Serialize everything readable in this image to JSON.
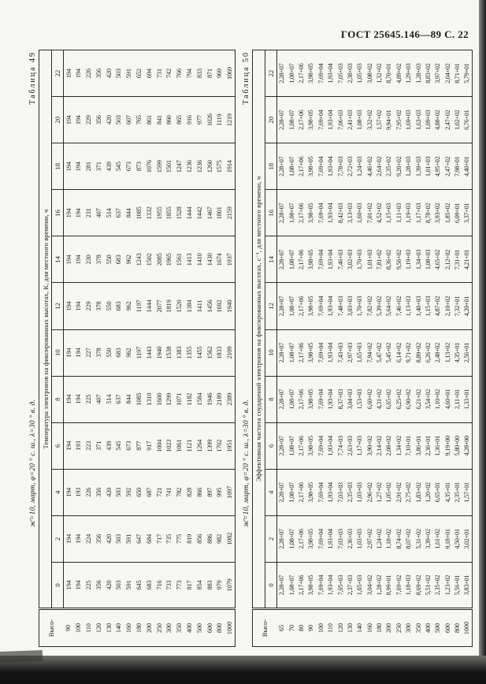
{
  "page": {
    "header": "ГОСТ 25645.146—89  С.  22"
  },
  "tables": [
    {
      "label": "Таблица 49",
      "subtitle": "ж̄=10, март, φ=20 ° с. ш., λ=30 ° в. д.",
      "title": "Температура электронов на фиксированных высотах, К, для местного времени, ч",
      "height_header_line1": "Высо-",
      "height_header_line2": "та, км",
      "hours": [
        "0",
        "2",
        "4",
        "6",
        "8",
        "10",
        "12",
        "14",
        "16",
        "18",
        "20",
        "22"
      ],
      "heights": [
        "90",
        "100",
        "110",
        "120",
        "130",
        "140",
        "160",
        "180",
        "200",
        "250",
        "300",
        "350",
        "400",
        "500",
        "600",
        "800",
        "1000"
      ],
      "values_by_hour": [
        [
          "194",
          "194",
          "225",
          "356",
          "420",
          "503",
          "591",
          "645",
          "683",
          "716",
          "733",
          "773",
          "817",
          "854",
          "883",
          "979",
          "1079"
        ],
        [
          "194",
          "194",
          "224",
          "356",
          "420",
          "503",
          "591",
          "647",
          "684",
          "717",
          "735",
          "775",
          "819",
          "856",
          "886",
          "982",
          "1082"
        ],
        [
          "194",
          "193",
          "226",
          "356",
          "420",
          "503",
          "592",
          "650",
          "687",
          "721",
          "741",
          "782",
          "828",
          "866",
          "897",
          "995",
          "1097"
        ],
        [
          "194",
          "193",
          "223",
          "371",
          "439",
          "545",
          "673",
          "877",
          "917",
          "1004",
          "1023",
          "1061",
          "1121",
          "1264",
          "1399",
          "1702",
          "1951"
        ],
        [
          "194",
          "194",
          "225",
          "407",
          "514",
          "637",
          "844",
          "1085",
          "1310",
          "1600",
          "1299",
          "1071",
          "1182",
          "1584",
          "1946",
          "2189",
          "2389"
        ],
        [
          "194",
          "194",
          "227",
          "378",
          "550",
          "683",
          "962",
          "1197",
          "1443",
          "1940",
          "1538",
          "1383",
          "1355",
          "1455",
          "1562",
          "1833",
          "2109"
        ],
        [
          "194",
          "194",
          "229",
          "378",
          "550",
          "683",
          "962",
          "1197",
          "1444",
          "2077",
          "1819",
          "1520",
          "1384",
          "1411",
          "1456",
          "1692",
          "1940"
        ],
        [
          "194",
          "194",
          "230",
          "378",
          "550",
          "683",
          "962",
          "1243",
          "1502",
          "2085",
          "1965",
          "1561",
          "1413",
          "1410",
          "1430",
          "1674",
          "1937"
        ],
        [
          "194",
          "194",
          "231",
          "407",
          "514",
          "637",
          "844",
          "1085",
          "1332",
          "1955",
          "1855",
          "1528",
          "1444",
          "1442",
          "1467",
          "1801",
          "2159"
        ],
        [
          "194",
          "194",
          "281",
          "371",
          "439",
          "545",
          "673",
          "873",
          "1076",
          "1599",
          "1501",
          "1247",
          "1236",
          "1236",
          "1260",
          "1575",
          "1914"
        ],
        [
          "194",
          "194",
          "229",
          "356",
          "420",
          "503",
          "607",
          "765",
          "861",
          "841",
          "860",
          "865",
          "916",
          "977",
          "1026",
          "1119",
          "1219"
        ],
        [
          "194",
          "194",
          "226",
          "356",
          "420",
          "503",
          "591",
          "652",
          "694",
          "731",
          "742",
          "766",
          "794",
          "833",
          "871",
          "969",
          "1069"
        ]
      ]
    },
    {
      "label": "Таблица 50",
      "subtitle": "ж̄=10, март, φ=20 ° с. ш., λ=30 ° в. д.",
      "title": "Эффективная частота соударений электронов на фиксированных высотах, с⁻¹, для местного времени, ч",
      "height_header_line1": "Высо-",
      "height_header_line2": "та, км",
      "hours": [
        "0",
        "2",
        "4",
        "6",
        "8",
        "10",
        "12",
        "14",
        "16",
        "18",
        "20",
        "22"
      ],
      "heights": [
        "65",
        "70",
        "80",
        "90",
        "100",
        "110",
        "120",
        "130",
        "140",
        "160",
        "180",
        "200",
        "250",
        "300",
        "350",
        "400",
        "500",
        "600",
        "800",
        "1000"
      ],
      "values_by_hour": [
        [
          "2,28+07",
          "1,08+07",
          "2,17+06",
          "3,98+05",
          "7,69+04",
          "1,93+04",
          "7,05+03",
          "2,37+03",
          "1,05+03",
          "3,04+02",
          "1,28+02",
          "8,99+01",
          "7,69+02",
          "1,18+03",
          "8,69+02",
          "5,51+02",
          "2,35+02",
          "1,23+02",
          "5,56+01",
          "3,83+01"
        ],
        [
          "2,28+07",
          "1,08+07",
          "2,17+06",
          "3,98+05",
          "7,69+04",
          "1,93+04",
          "7,03+03",
          "2,36+03",
          "1,03+03",
          "2,97+02",
          "1,24+02",
          "1,18+02",
          "8,74+02",
          "8,07+02",
          "5,31+02",
          "3,39+02",
          "1,61+02",
          "9,18+01",
          "4,50+01",
          "3,02+01"
        ],
        [
          "2,28+07",
          "1,08+07",
          "2,17+06",
          "3,98+05",
          "7,69+04",
          "1,93+04",
          "7,03+03",
          "2,35+03",
          "1,03+03",
          "2,96+02",
          "1,27+02",
          "1,05+02",
          "2,91+02",
          "2,75+02",
          "1,83+02",
          "1,20+02",
          "6,65+01",
          "4,35+01",
          "2,35+01",
          "1,57+01"
        ],
        [
          "2,28+07",
          "1,08+07",
          "2,17+06",
          "3,98+05",
          "7,69+04",
          "1,93+04",
          "7,74+03",
          "2,63+03",
          "1,17+03",
          "3,90+02",
          "2,14+02",
          "2,08+02",
          "1,34+02",
          "7,10+01",
          "3,86+01",
          "2,36+01",
          "1,36+01",
          "9,19+00",
          "5,80+00",
          "4,28+00"
        ],
        [
          "2,28+07",
          "1,08+07",
          "2,17+06",
          "3,98+05",
          "7,69+04",
          "1,93+04",
          "8,37+03",
          "3,04+03",
          "1,53+03",
          "6,60+02",
          "4,31+02",
          "6,65+02",
          "6,25+02",
          "6,90+02",
          "6,21+02",
          "3,54+02",
          "1,10+02",
          "4,60+01",
          "2,11+01",
          "1,33+01"
        ],
        [
          "2,28+07",
          "1,08+07",
          "2,17+06",
          "3,98+05",
          "7,69+04",
          "1,93+04",
          "7,43+03",
          "2,97+03",
          "1,65+03",
          "7,94+02",
          "5,47+02",
          "5,45+02",
          "6,14+02",
          "9,71+02",
          "8,89+02",
          "6,26+02",
          "2,48+02",
          "1,13+02",
          "4,35+01",
          "2,56+01"
        ],
        [
          "2,28+07",
          "1,08+07",
          "2,17+06",
          "3,98+05",
          "7,69+04",
          "1,93+04",
          "7,48+03",
          "3,03+03",
          "1,70+03",
          "7,82+02",
          "5,39+02",
          "5,64+02",
          "7,46+02",
          "1,13+03",
          "1,40+03",
          "1,15+03",
          "4,87+02",
          "2,10+02",
          "7,32+01",
          "4,20+01"
        ],
        [
          "2,28+07",
          "1,08+07",
          "2,17+06",
          "3,98+05",
          "7,69+04",
          "1,93+04",
          "7,46+03",
          "3,02+03",
          "1,70+03",
          "1,01+03",
          "7,81+02",
          "8,36+02",
          "9,56+02",
          "1,19+03",
          "1,34+03",
          "1,08+03",
          "4,65+02",
          "2,12+02",
          "7,31+01",
          "4,21+01"
        ],
        [
          "2,28+07",
          "1,08+07",
          "2,17+06",
          "3,98+05",
          "7,69+04",
          "1,93+04",
          "8,42+03",
          "3,13+03",
          "1,60+03",
          "7,01+02",
          "4,52+02",
          "1,15+03",
          "1,11+03",
          "1,19+03",
          "1,17+03",
          "8,78+02",
          "3,93+02",
          "1,85+02",
          "6,09+01",
          "3,37+01"
        ],
        [
          "2,28+07",
          "1,08+07",
          "2,17+06",
          "3,98+05",
          "7,69+04",
          "1,93+04",
          "7,78+03",
          "2,72+03",
          "1,24+03",
          "4,46+02",
          "2,64+02",
          "2,35+02",
          "9,20+02",
          "1,28+03",
          "1,39+03",
          "1,01+03",
          "4,95+02",
          "2,47+02",
          "7,98+01",
          "4,40+01"
        ],
        [
          "2,28+07",
          "1,08+07",
          "2,17+06",
          "3,98+05",
          "7,69+04",
          "1,93+04",
          "7,06+03",
          "2,41+03",
          "1,08+03",
          "3,32+02",
          "1,57+02",
          "9,94+01",
          "7,95+02",
          "1,69+03",
          "1,63+03",
          "1,09+03",
          "4,88+02",
          "2,47+02",
          "1,02+02",
          "6,76+01"
        ],
        [
          "2,28+07",
          "1,08+07",
          "2,17+06",
          "3,98+05",
          "7,69+04",
          "1,93+04",
          "7,05+03",
          "2,38+03",
          "1,05+03",
          "3,08+02",
          "1,32+02",
          "8,70+01",
          "4,89+02",
          "1,29+03",
          "1,28+03",
          "8,83+02",
          "3,97+02",
          "2,04+02",
          "8,71+01",
          "5,79+01"
        ]
      ]
    }
  ]
}
